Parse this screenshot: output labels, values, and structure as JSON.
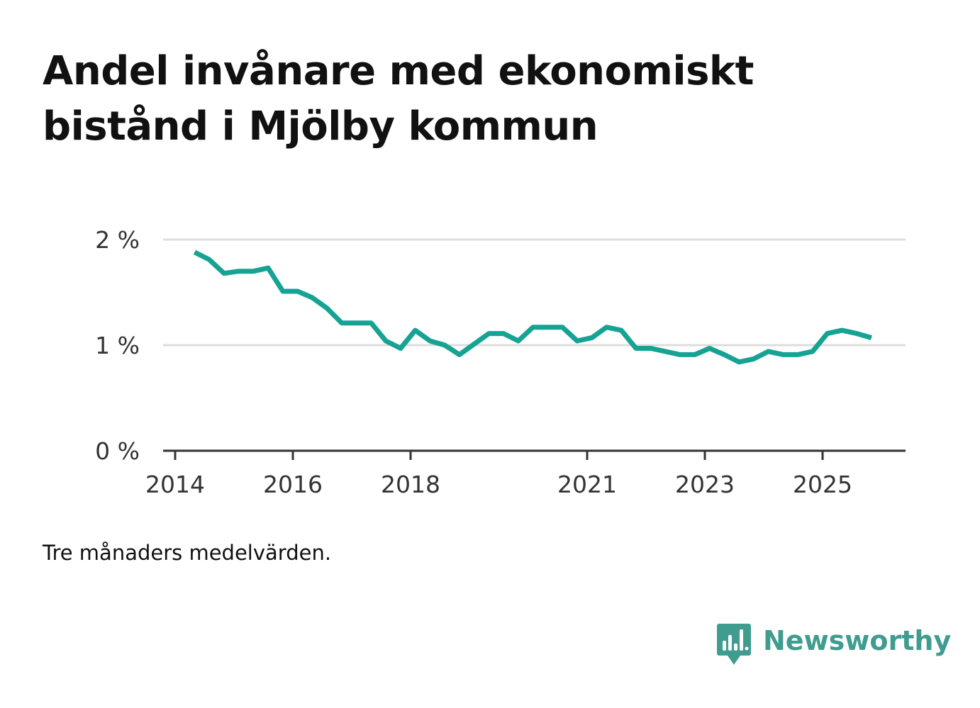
{
  "title": "Andel invånare med ekonomiskt bistånd i Mjölby kommun",
  "note": "Tre månaders medelvärden.",
  "brand": {
    "name": "Newsworthy",
    "logo_icon": "newsworthy-bar-chart-icon"
  },
  "colors": {
    "line": "#16a394",
    "grid": "#dddddd",
    "axis": "#333333",
    "brand": "#3f9c8f"
  },
  "chart_data": {
    "type": "line",
    "title": "Andel invånare med ekonomiskt bistånd i Mjölby kommun",
    "xlabel": "",
    "ylabel": "",
    "ylim": [
      0,
      2
    ],
    "xlim": [
      2014,
      2026.4
    ],
    "yticks": [
      {
        "value": 0,
        "label": "0 %"
      },
      {
        "value": 1,
        "label": "1 %"
      },
      {
        "value": 2,
        "label": "2 %"
      }
    ],
    "xticks": [
      {
        "value": 2014,
        "label": "2014"
      },
      {
        "value": 2016,
        "label": "2016"
      },
      {
        "value": 2018,
        "label": "2018"
      },
      {
        "value": 2021,
        "label": "2021"
      },
      {
        "value": 2023,
        "label": "2023"
      },
      {
        "value": 2025,
        "label": "2025"
      }
    ],
    "grid": true,
    "series": [
      {
        "name": "Andel invånare med ekonomiskt bistånd",
        "x": [
          2014.33,
          2014.58,
          2014.83,
          2015.08,
          2015.33,
          2015.58,
          2015.83,
          2016.08,
          2016.33,
          2016.58,
          2016.83,
          2017.08,
          2017.33,
          2017.58,
          2017.83,
          2018.08,
          2018.33,
          2018.58,
          2018.83,
          2019.08,
          2019.33,
          2019.58,
          2019.83,
          2020.08,
          2020.33,
          2020.58,
          2020.83,
          2021.08,
          2021.33,
          2021.58,
          2021.83,
          2022.08,
          2022.33,
          2022.58,
          2022.83,
          2023.08,
          2023.33,
          2023.58,
          2023.83,
          2024.08,
          2024.33,
          2024.58,
          2024.83,
          2025.08,
          2025.33,
          2025.58,
          2025.83
        ],
        "values": [
          1.88,
          1.81,
          1.68,
          1.7,
          1.7,
          1.73,
          1.51,
          1.51,
          1.45,
          1.35,
          1.21,
          1.21,
          1.21,
          1.04,
          0.97,
          1.14,
          1.04,
          1.0,
          0.91,
          1.01,
          1.11,
          1.11,
          1.04,
          1.17,
          1.17,
          1.17,
          1.04,
          1.07,
          1.17,
          1.14,
          0.97,
          0.97,
          0.94,
          0.91,
          0.91,
          0.97,
          0.91,
          0.84,
          0.87,
          0.94,
          0.91,
          0.91,
          0.94,
          1.11,
          1.14,
          1.11,
          1.07
        ]
      }
    ]
  }
}
